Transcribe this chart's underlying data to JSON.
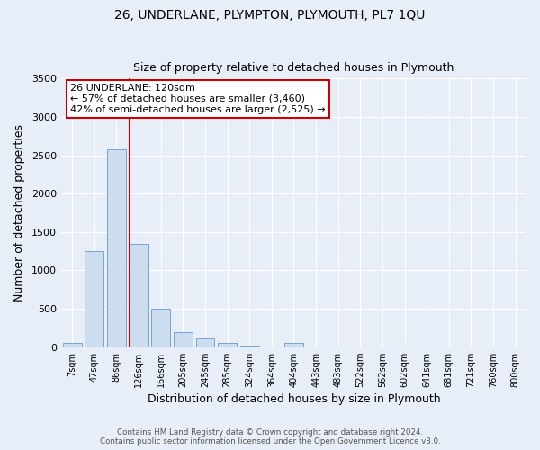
{
  "title1": "26, UNDERLANE, PLYMPTON, PLYMOUTH, PL7 1QU",
  "title2": "Size of property relative to detached houses in Plymouth",
  "xlabel": "Distribution of detached houses by size in Plymouth",
  "ylabel": "Number of detached properties",
  "bar_labels": [
    "7sqm",
    "47sqm",
    "86sqm",
    "126sqm",
    "166sqm",
    "205sqm",
    "245sqm",
    "285sqm",
    "324sqm",
    "364sqm",
    "404sqm",
    "443sqm",
    "483sqm",
    "522sqm",
    "562sqm",
    "602sqm",
    "641sqm",
    "681sqm",
    "721sqm",
    "760sqm",
    "800sqm"
  ],
  "bar_values": [
    55,
    1250,
    2575,
    1350,
    500,
    200,
    110,
    55,
    20,
    0,
    50,
    0,
    0,
    0,
    0,
    0,
    0,
    0,
    0,
    0,
    0
  ],
  "bar_color": "#ccddf0",
  "bar_edgecolor": "#6699cc",
  "vline_color": "#cc0000",
  "annotation_title": "26 UNDERLANE: 120sqm",
  "annotation_line1": "← 57% of detached houses are smaller (3,460)",
  "annotation_line2": "42% of semi-detached houses are larger (2,525) →",
  "annotation_box_edgecolor": "#cc0000",
  "ylim": [
    0,
    3500
  ],
  "yticks": [
    0,
    500,
    1000,
    1500,
    2000,
    2500,
    3000,
    3500
  ],
  "footer1": "Contains HM Land Registry data © Crown copyright and database right 2024.",
  "footer2": "Contains public sector information licensed under the Open Government Licence v3.0.",
  "background_color": "#e8eef8",
  "plot_background": "#e8eef8",
  "grid_color": "#ffffff"
}
